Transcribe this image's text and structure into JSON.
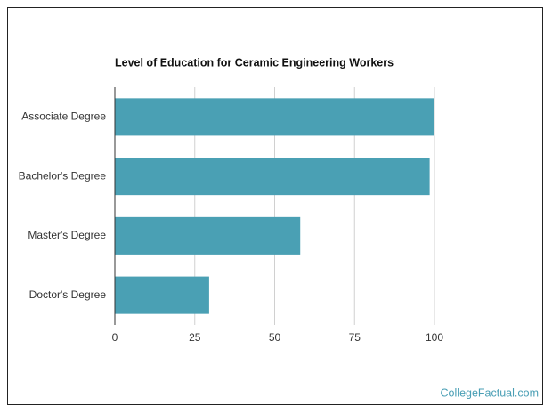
{
  "chart_data": {
    "type": "bar",
    "orientation": "horizontal",
    "title": "Level of Education for Ceramic Engineering Workers",
    "categories": [
      "Associate Degree",
      "Bachelor's Degree",
      "Master's Degree",
      "Doctor's Degree"
    ],
    "values": [
      100,
      98.5,
      58,
      29.5
    ],
    "color": "#4aa0b4",
    "xlim": [
      0,
      100
    ],
    "xticks": [
      0,
      25,
      50,
      75,
      100
    ],
    "grid": true
  },
  "watermark": "CollegeFactual.com"
}
